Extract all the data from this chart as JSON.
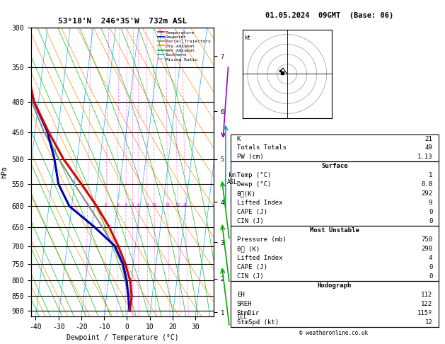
{
  "title_left": "53°18'N  246°35'W  732m ASL",
  "title_right": "01.05.2024  09GMT  (Base: 06)",
  "xlabel": "Dewpoint / Temperature (°C)",
  "ylabel_left": "hPa",
  "p_min": 300,
  "p_max": 920,
  "xlim": [
    -42,
    38
  ],
  "xticks": [
    -40,
    -30,
    -20,
    -10,
    0,
    10,
    20,
    30
  ],
  "skew_factor": 13.5,
  "temp_profile": {
    "temps": [
      1.0,
      1.0,
      -0.5,
      -3.5,
      -7.5,
      -12.5,
      -19.0,
      -27.0,
      -36.0,
      -44.0,
      -52.0,
      -57.0,
      -60.0
    ],
    "pressures": [
      900,
      850,
      800,
      750,
      700,
      650,
      600,
      550,
      500,
      450,
      400,
      350,
      300
    ],
    "color": "#dd0000",
    "linewidth": 2.2
  },
  "dewp_profile": {
    "temps": [
      0.8,
      -0.5,
      -2.0,
      -4.5,
      -9.0,
      -19.0,
      -31.0,
      -37.0,
      -40.0,
      -44.5,
      -52.0,
      -57.5,
      -61.0
    ],
    "pressures": [
      900,
      850,
      800,
      750,
      700,
      650,
      600,
      550,
      500,
      450,
      400,
      350,
      300
    ],
    "color": "#0000bb",
    "linewidth": 2.2
  },
  "parcel_profile": {
    "temps": [
      1.0,
      -0.5,
      -2.5,
      -5.0,
      -9.5,
      -15.5,
      -22.5,
      -30.0,
      -38.0,
      -46.0,
      -53.0,
      -58.0,
      -61.5
    ],
    "pressures": [
      900,
      850,
      800,
      750,
      700,
      650,
      600,
      550,
      500,
      450,
      400,
      350,
      300
    ],
    "color": "#888888",
    "linewidth": 1.5
  },
  "isotherm_color": "#00aaff",
  "dry_adiabat_color": "#ff8800",
  "wet_adiabat_color": "#00bb00",
  "mixing_ratio_color": "#ff00ff",
  "mixing_ratio_values": [
    1,
    2,
    3,
    4,
    5,
    6,
    8,
    10,
    15,
    20,
    25
  ],
  "km_ticks": [
    1,
    2,
    3,
    4,
    5,
    6,
    7
  ],
  "km_pressures": [
    905,
    795,
    690,
    590,
    500,
    415,
    335
  ],
  "info_K": 21,
  "info_TT": 49,
  "info_PW": 1.13,
  "surf_temp": 1,
  "surf_dewp": 0.8,
  "surf_theta_e": 292,
  "surf_li": 9,
  "surf_cape": 0,
  "surf_cin": 0,
  "mu_press": 750,
  "mu_theta_e": 298,
  "mu_li": 4,
  "mu_cape": 0,
  "mu_cin": 0,
  "hodo_EH": 112,
  "hodo_SREH": 122,
  "hodo_StmDir": "115º",
  "hodo_StmSpd": 12,
  "legend_entries": [
    {
      "label": "Temperature",
      "color": "#dd0000",
      "style": "-"
    },
    {
      "label": "Dewpoint",
      "color": "#0000bb",
      "style": "-"
    },
    {
      "label": "Parcel Trajectory",
      "color": "#888888",
      "style": "-"
    },
    {
      "label": "Dry Adiabat",
      "color": "#ff8800",
      "style": "-"
    },
    {
      "label": "Wet Adiabat",
      "color": "#00bb00",
      "style": "-"
    },
    {
      "label": "Isotherm",
      "color": "#00aaff",
      "style": "-"
    },
    {
      "label": "Mixing Ratio",
      "color": "#ff00ff",
      "style": ":"
    }
  ]
}
